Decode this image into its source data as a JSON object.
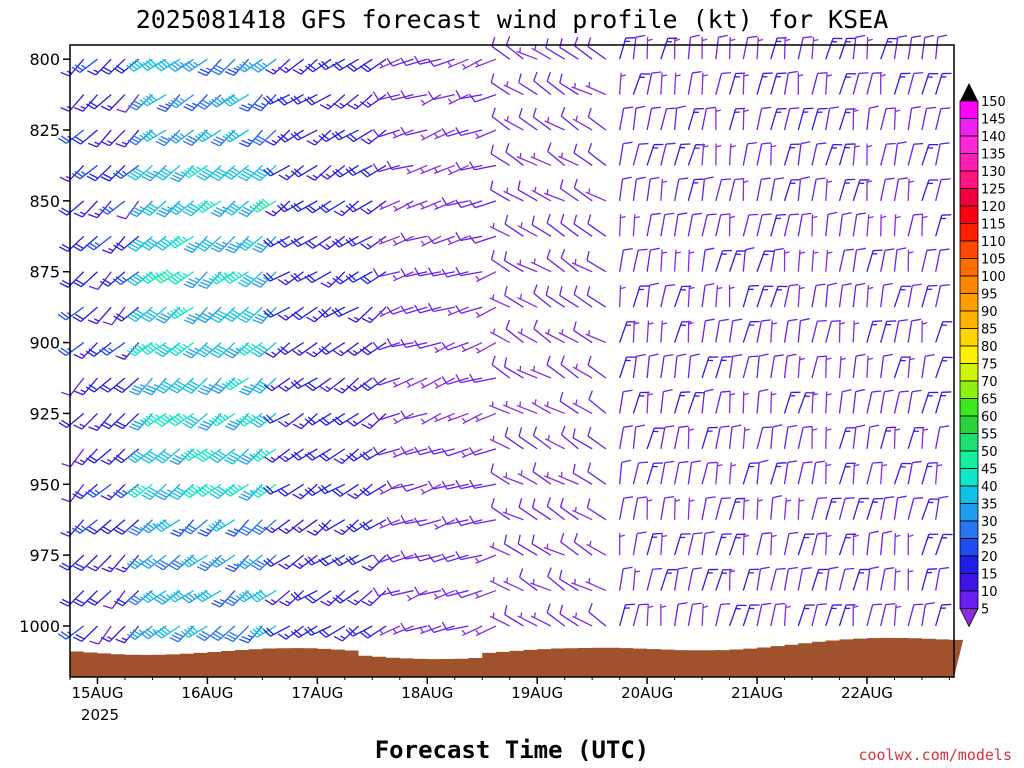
{
  "chart_data": {
    "type": "wind-barb-profile",
    "title": "2025081418 GFS forecast wind profile (kt) for KSEA",
    "xlabel": "Forecast Time (UTC)",
    "ylabel": "",
    "x_ticks": [
      "15AUG",
      "16AUG",
      "17AUG",
      "18AUG",
      "19AUG",
      "20AUG",
      "21AUG",
      "22AUG"
    ],
    "x_year_label": "2025",
    "x_range_hours": [
      0,
      193
    ],
    "y_ticks": [
      800,
      825,
      850,
      875,
      900,
      925,
      950,
      975,
      1000
    ],
    "y_range_hpa": [
      795,
      1018
    ],
    "pressure_levels_hpa": [
      800,
      812.5,
      825,
      837.5,
      850,
      862.5,
      875,
      887.5,
      900,
      912.5,
      925,
      937.5,
      950,
      962.5,
      975,
      987.5,
      1000,
      1012.5
    ],
    "time_step_hours": 3,
    "colorbar_kt": [
      5,
      10,
      15,
      20,
      25,
      30,
      35,
      40,
      45,
      50,
      55,
      60,
      65,
      70,
      75,
      80,
      85,
      90,
      95,
      100,
      105,
      110,
      115,
      120,
      125,
      130,
      135,
      140,
      145,
      150
    ],
    "colorbar_colors": [
      "#8a2be2",
      "#6a1ff0",
      "#3c14e8",
      "#1e1ee6",
      "#1e4ef0",
      "#2876f0",
      "#1e9eee",
      "#10c0e8",
      "#0ee8c8",
      "#14f0a0",
      "#1ee070",
      "#2cd23c",
      "#3ce81e",
      "#8ef014",
      "#d0f50a",
      "#fff000",
      "#ffd400",
      "#ffb400",
      "#ff9c00",
      "#ff8400",
      "#ff6c00",
      "#ff4800",
      "#ff2000",
      "#ff0010",
      "#f0003c",
      "#ff1482",
      "#ff1eb4",
      "#ff28d8",
      "#ee22ee",
      "#ff00ff"
    ],
    "wind_regimes": [
      {
        "hours": [
          0,
          18
        ],
        "direction_deg": 225,
        "speed_kt": [
          10,
          25
        ]
      },
      {
        "hours": [
          18,
          48
        ],
        "direction_deg": 230,
        "speed_kt": [
          25,
          40
        ]
      },
      {
        "hours": [
          48,
          72
        ],
        "direction_deg": 235,
        "speed_kt": [
          15,
          20
        ]
      },
      {
        "hours": [
          72,
          96
        ],
        "direction_deg": 250,
        "speed_kt": [
          5,
          10
        ]
      },
      {
        "hours": [
          96,
          120
        ],
        "direction_deg": 300,
        "speed_kt": [
          5,
          10
        ]
      },
      {
        "hours": [
          120,
          193
        ],
        "direction_deg": 10,
        "speed_kt": [
          5,
          15
        ]
      }
    ]
  },
  "credit": "coolwx.com/models"
}
